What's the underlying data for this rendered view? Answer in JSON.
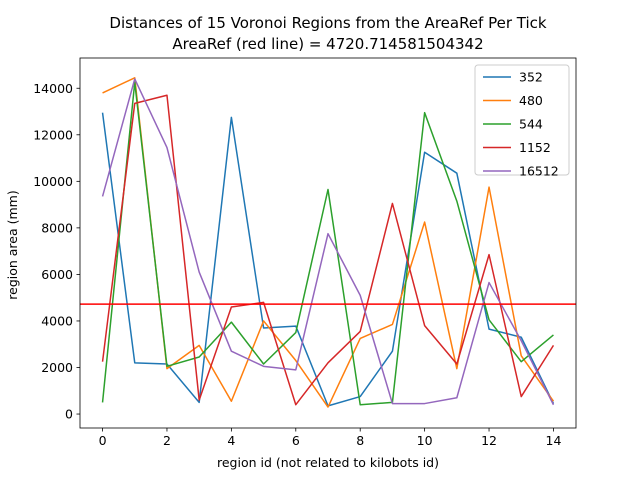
{
  "chart_data": {
    "type": "line",
    "title": "Distances of 15 Voronoi Regions from the AreaRef Per Tick",
    "subtitle": "AreaRef (red line) = 4720.714581504342",
    "xlabel": "region id (not related to kilobots id)",
    "ylabel": "region area (mm)",
    "x": [
      0,
      1,
      2,
      3,
      4,
      5,
      6,
      7,
      8,
      9,
      10,
      11,
      12,
      13,
      14
    ],
    "xlim": [
      -0.7,
      14.7
    ],
    "ylim": [
      -600,
      15300
    ],
    "xticks": [
      0,
      2,
      4,
      6,
      8,
      10,
      12,
      14
    ],
    "yticks": [
      0,
      2000,
      4000,
      6000,
      8000,
      10000,
      12000,
      14000
    ],
    "grid": false,
    "legend_position": "upper right",
    "reference_line": {
      "y": 4720.714581504342,
      "color": "#ff0000"
    },
    "series": [
      {
        "name": "352",
        "color": "#1f77b4",
        "values": [
          12950,
          2200,
          2150,
          500,
          12750,
          3700,
          3780,
          350,
          750,
          2700,
          11250,
          10350,
          3650,
          3300,
          450
        ]
      },
      {
        "name": "480",
        "color": "#ff7f0e",
        "values": [
          13800,
          14450,
          1950,
          2950,
          550,
          4000,
          2300,
          300,
          3250,
          3850,
          8250,
          1950,
          9750,
          2500,
          550
        ]
      },
      {
        "name": "544",
        "color": "#2ca02c",
        "values": [
          500,
          14250,
          2050,
          2450,
          3950,
          2150,
          3500,
          9650,
          400,
          500,
          12950,
          9150,
          4050,
          2250,
          3400
        ]
      },
      {
        "name": "1152",
        "color": "#d62728",
        "values": [
          2250,
          13350,
          13700,
          600,
          4600,
          4800,
          400,
          2200,
          3550,
          9050,
          3800,
          2150,
          6850,
          750,
          2950
        ]
      },
      {
        "name": "16512",
        "color": "#9467bd",
        "values": [
          9350,
          14400,
          11450,
          6100,
          2700,
          2050,
          1900,
          7750,
          5100,
          450,
          450,
          700,
          5650,
          3150,
          400
        ]
      }
    ]
  }
}
